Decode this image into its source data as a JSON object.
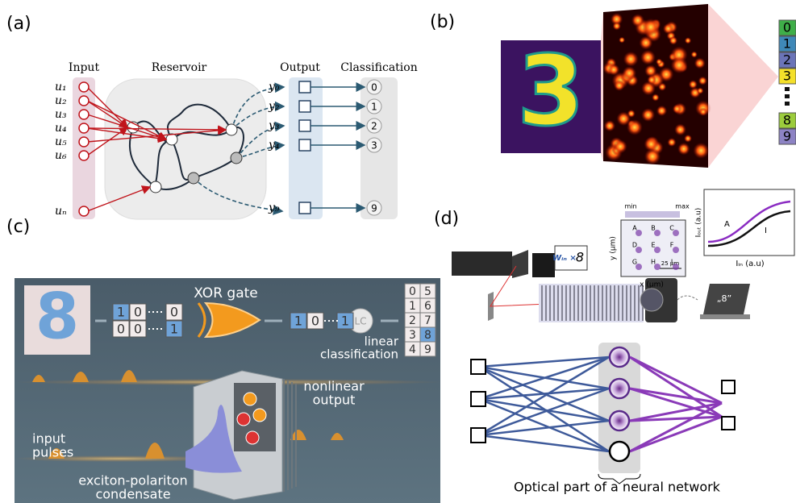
{
  "panel_a": {
    "label": "(a)",
    "headers": [
      "Input",
      "Reservoir",
      "Output",
      "Classification"
    ],
    "inputs": [
      "u₁",
      "u₂",
      "u₃",
      "u₄",
      "u₅",
      "u₆",
      "uₙ"
    ],
    "outputs": [
      "y₀",
      "y₂",
      "y₃",
      "y₄",
      "y₉"
    ],
    "classes": [
      "0",
      "1",
      "2",
      "3",
      "9"
    ]
  },
  "panel_b": {
    "label": "(b)",
    "digit": "3",
    "classes": [
      "0",
      "1",
      "2",
      "3",
      "8",
      "9"
    ]
  },
  "panel_c": {
    "label": "(c)",
    "digit": "8",
    "bits_top": [
      "1",
      "0",
      "0"
    ],
    "bits_bottom": [
      "0",
      "0",
      "1"
    ],
    "gate": "XOR gate",
    "bits_out": [
      "1",
      "0",
      "1"
    ],
    "classifier": "LC",
    "classifier_caption": [
      "linear",
      "classification"
    ],
    "table": [
      [
        "0",
        "5"
      ],
      [
        "1",
        "6"
      ],
      [
        "2",
        "7"
      ],
      [
        "3",
        "8"
      ],
      [
        "4",
        "9"
      ]
    ],
    "output_label": [
      "nonlinear",
      "output"
    ],
    "input_label": [
      "input",
      "pulses"
    ],
    "condensate_label": [
      "exciton-polariton",
      "condensate"
    ]
  },
  "panel_d": {
    "label": "(d)",
    "colorbar": [
      "min",
      "max"
    ],
    "spots": [
      "A",
      "B",
      "C",
      "D",
      "E",
      "F",
      "G",
      "H",
      "I"
    ],
    "scale": "25 μm",
    "y_axis": "y (μm)",
    "x_axis": "x (μm)",
    "plot_y": "Iₒᵤₜ (a.u)",
    "plot_x": "Iᵢₙ (a.u)",
    "curve_labels": [
      "A",
      "I"
    ],
    "matrix_label": "Wᵢₙ ×",
    "mask_digit": "8",
    "screen_text": "„8”",
    "caption": "Optical part of a neural network"
  }
}
